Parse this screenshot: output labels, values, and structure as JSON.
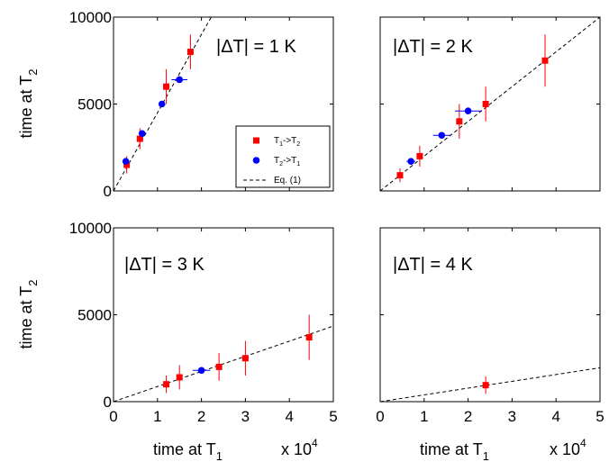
{
  "colors": {
    "red_series": "#ff0000",
    "blue_series": "#0000ff",
    "fit_line": "#000000",
    "axes": "#000000"
  },
  "axes": {
    "xlabel_main": "time at T",
    "xlabel_sub": "1",
    "ylabel_main": "time at T",
    "ylabel_sub": "2",
    "x_multiplier_base": "x 10",
    "x_multiplier_exp": "4",
    "xlim": [
      0,
      50000
    ],
    "ylim": [
      0,
      10000
    ],
    "x_ticks": [
      0,
      10000,
      20000,
      30000,
      40000,
      50000
    ],
    "x_tick_labels": [
      "0",
      "1",
      "2",
      "3",
      "4",
      "5"
    ],
    "y_ticks": [
      0,
      5000,
      10000
    ],
    "y_tick_labels": [
      "0",
      "5000",
      "10000"
    ]
  },
  "legend": {
    "entries": [
      {
        "main": "T",
        "sub1": "1",
        "mid": "->T",
        "sub2": "2",
        "marker": "square",
        "color": "#ff0000"
      },
      {
        "main": "T",
        "sub1": "2",
        "mid": "->T",
        "sub2": "1",
        "marker": "circle",
        "color": "#0000ff"
      },
      {
        "label": "Eq. (1)",
        "marker": "dashed-line",
        "color": "#000000"
      }
    ]
  },
  "chart_data": [
    {
      "type": "scatter",
      "panel_label": "|ΔT| = 1 K",
      "slope": 0.45,
      "series": [
        {
          "name": "T1->T2",
          "color": "#ff0000",
          "marker": "square",
          "points": [
            {
              "x": 3000,
              "y": 1500,
              "xerr": 0,
              "yerr": 500
            },
            {
              "x": 6000,
              "y": 3000,
              "xerr": 0,
              "yerr": 600
            },
            {
              "x": 12000,
              "y": 6000,
              "xerr": 0,
              "yerr": 1000
            },
            {
              "x": 17500,
              "y": 8000,
              "xerr": 0,
              "yerr": 1000
            }
          ]
        },
        {
          "name": "T2->T1",
          "color": "#0000ff",
          "marker": "circle",
          "points": [
            {
              "x": 2800,
              "y": 1700,
              "xerr": 500,
              "yerr": 0
            },
            {
              "x": 6500,
              "y": 3300,
              "xerr": 800,
              "yerr": 0
            },
            {
              "x": 11000,
              "y": 5000,
              "xerr": 500,
              "yerr": 0
            },
            {
              "x": 15000,
              "y": 6400,
              "xerr": 1800,
              "yerr": 0
            }
          ]
        }
      ]
    },
    {
      "type": "scatter",
      "panel_label": "|ΔT| = 2 K",
      "slope": 0.2,
      "series": [
        {
          "name": "T1->T2",
          "color": "#ff0000",
          "marker": "square",
          "points": [
            {
              "x": 4500,
              "y": 900,
              "xerr": 0,
              "yerr": 400
            },
            {
              "x": 9000,
              "y": 2000,
              "xerr": 0,
              "yerr": 600
            },
            {
              "x": 18000,
              "y": 4000,
              "xerr": 0,
              "yerr": 1000
            },
            {
              "x": 24000,
              "y": 5000,
              "xerr": 0,
              "yerr": 1000
            },
            {
              "x": 37500,
              "y": 7500,
              "xerr": 0,
              "yerr": 1500
            }
          ]
        },
        {
          "name": "T2->T1",
          "color": "#0000ff",
          "marker": "circle",
          "points": [
            {
              "x": 7000,
              "y": 1700,
              "xerr": 1000,
              "yerr": 0
            },
            {
              "x": 14000,
              "y": 3200,
              "xerr": 2000,
              "yerr": 0
            },
            {
              "x": 20000,
              "y": 4600,
              "xerr": 3000,
              "yerr": 0
            }
          ]
        }
      ]
    },
    {
      "type": "scatter",
      "panel_label": "|ΔT| = 3 K",
      "slope": 0.087,
      "series": [
        {
          "name": "T1->T2",
          "color": "#ff0000",
          "marker": "square",
          "points": [
            {
              "x": 12000,
              "y": 1000,
              "xerr": 0,
              "yerr": 500
            },
            {
              "x": 15000,
              "y": 1400,
              "xerr": 0,
              "yerr": 700
            },
            {
              "x": 24000,
              "y": 2000,
              "xerr": 0,
              "yerr": 800
            },
            {
              "x": 30000,
              "y": 2500,
              "xerr": 0,
              "yerr": 1000
            },
            {
              "x": 44500,
              "y": 3700,
              "xerr": 0,
              "yerr": 1300
            }
          ]
        },
        {
          "name": "T2->T1",
          "color": "#0000ff",
          "marker": "circle",
          "points": [
            {
              "x": 20000,
              "y": 1800,
              "xerr": 2000,
              "yerr": 0
            }
          ]
        }
      ]
    },
    {
      "type": "scatter",
      "panel_label": "|ΔT| = 4 K",
      "slope": 0.039,
      "series": [
        {
          "name": "T1->T2",
          "color": "#ff0000",
          "marker": "square",
          "points": [
            {
              "x": 24000,
              "y": 950,
              "xerr": 0,
              "yerr": 500
            }
          ]
        }
      ]
    }
  ]
}
